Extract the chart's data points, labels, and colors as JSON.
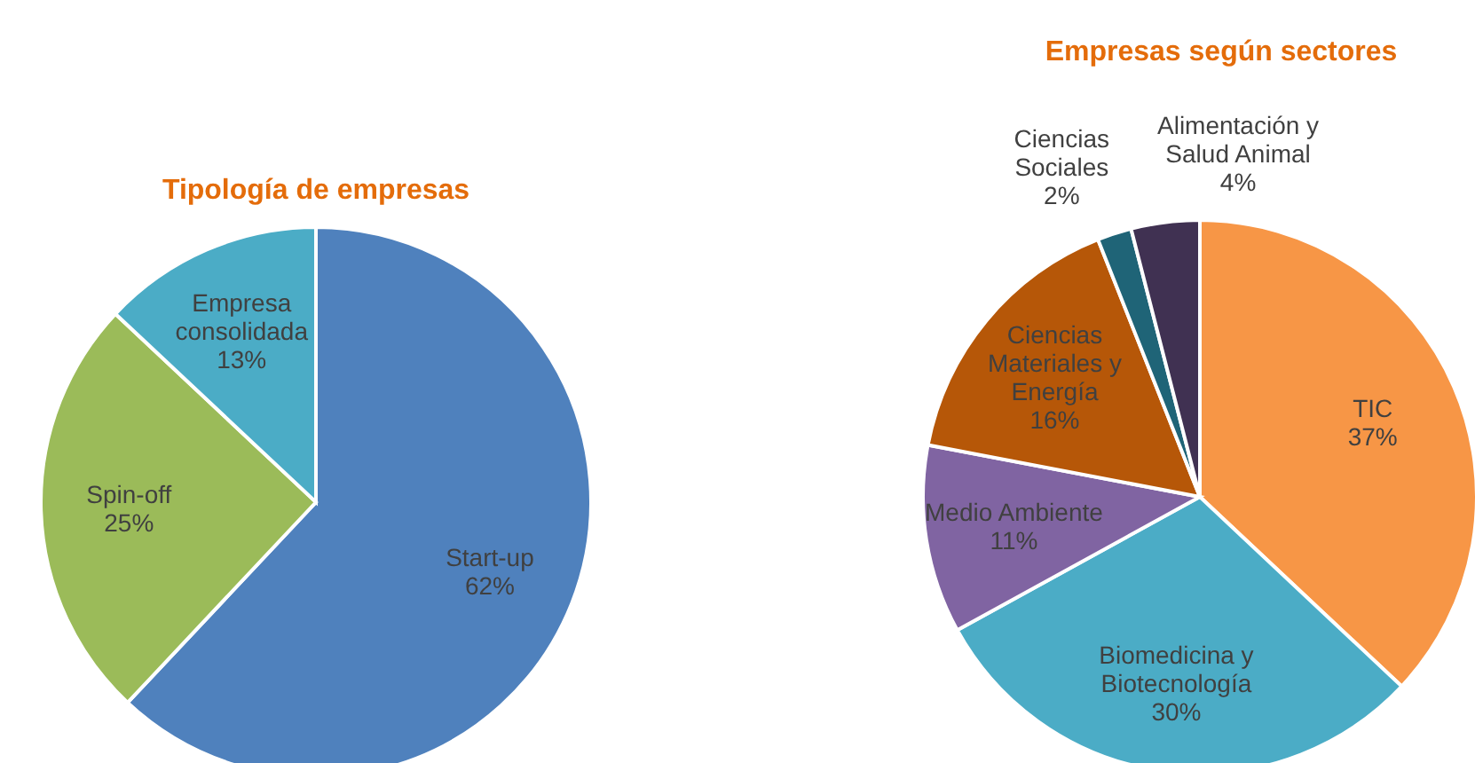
{
  "chart_data": [
    {
      "type": "pie",
      "title": "Tipología de empresas",
      "categories": [
        "Start-up",
        "Spin-off",
        "Empresa consolidada"
      ],
      "values": [
        62,
        25,
        13
      ],
      "colors": [
        "#4f81bd",
        "#9bbb59",
        "#4bacc6"
      ],
      "value_labels": [
        "62%",
        "25%",
        "13%"
      ]
    },
    {
      "type": "pie",
      "title": "Empresas según sectores",
      "categories": [
        "TIC",
        "Biomedicina y Biotecnología",
        "Medio Ambiente",
        "Ciencias Materiales y Energía",
        "Ciencias Sociales",
        "Alimentación y Salud Animal"
      ],
      "values": [
        37,
        30,
        11,
        16,
        2,
        4
      ],
      "colors": [
        "#f79646",
        "#4bacc6",
        "#8064a2",
        "#b65708",
        "#1f6477",
        "#403152"
      ],
      "value_labels": [
        "37%",
        "30%",
        "11%",
        "16%",
        "2%",
        "4%"
      ]
    }
  ]
}
